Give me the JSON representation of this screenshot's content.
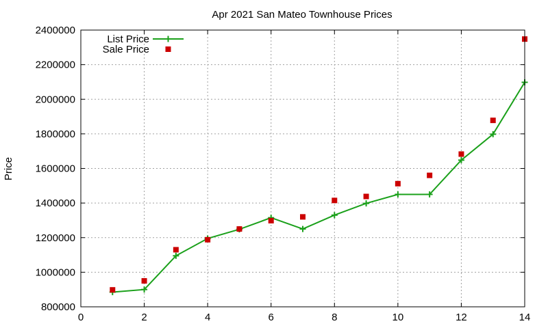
{
  "chart_data": {
    "type": "line",
    "title": "Apr 2021 San Mateo Townhouse Prices",
    "xlabel": "",
    "ylabel": "Price",
    "xlim": [
      0,
      14
    ],
    "ylim": [
      800000,
      2400000
    ],
    "x_ticks": [
      0,
      2,
      4,
      6,
      8,
      10,
      12,
      14
    ],
    "y_ticks": [
      800000,
      1000000,
      1200000,
      1400000,
      1600000,
      1800000,
      2000000,
      2200000,
      2400000
    ],
    "x_tick_labels": [
      "0",
      "2",
      "4",
      "6",
      "8",
      "10",
      "12",
      "14"
    ],
    "y_tick_labels": [
      "800000",
      "1000000",
      "1200000",
      "1400000",
      "1600000",
      "1800000",
      "2000000",
      "2200000",
      "2400000"
    ],
    "grid": true,
    "legend_position": "top-left",
    "series": [
      {
        "name": "List Price",
        "style": "line-with-plus-markers",
        "color": "#1aa01a",
        "x": [
          1,
          2,
          3,
          4,
          5,
          6,
          7,
          8,
          9,
          10,
          11,
          12,
          13,
          14
        ],
        "y": [
          885000,
          900000,
          1095000,
          1195000,
          1248000,
          1315000,
          1250000,
          1330000,
          1398000,
          1450000,
          1450000,
          1648000,
          1798000,
          2098000
        ]
      },
      {
        "name": "Sale Price",
        "style": "square-markers",
        "color": "#cc0000",
        "x": [
          1,
          2,
          3,
          4,
          5,
          6,
          7,
          8,
          9,
          10,
          11,
          12,
          13,
          14
        ],
        "y": [
          898000,
          950000,
          1130000,
          1188000,
          1250000,
          1298000,
          1320000,
          1415000,
          1438000,
          1512000,
          1560000,
          1683000,
          1878000,
          2348000
        ]
      }
    ]
  }
}
